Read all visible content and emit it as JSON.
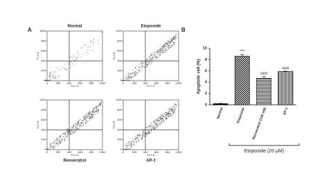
{
  "panel_labels": [
    "A",
    "B"
  ],
  "chart_data": [
    {
      "type": "scatter",
      "title": "Normal",
      "x_label": "FL1-H",
      "y_label": "FL1-H",
      "xlim": [
        0,
        1000
      ],
      "ylim": [
        0,
        1000
      ],
      "xticks": [
        0,
        200,
        400,
        600,
        800,
        1000
      ],
      "yticks": [
        0,
        200,
        400,
        600,
        800,
        1000
      ],
      "quadrant": [
        400,
        400
      ]
    },
    {
      "type": "scatter",
      "title": "Etoposide",
      "x_label": "FL1-H",
      "y_label": "FL2-H",
      "xlim": [
        0,
        1000
      ],
      "ylim": [
        0,
        1000
      ],
      "xticks": [
        0,
        200,
        400,
        600,
        800,
        1000
      ],
      "yticks": [
        0,
        200,
        400,
        600,
        800,
        1000
      ],
      "quadrant": [
        400,
        400
      ]
    },
    {
      "type": "scatter",
      "title": "Resveratrol",
      "x_label": "FL1-H",
      "y_label": "FL2-H",
      "xlim": [
        0,
        1000
      ],
      "ylim": [
        0,
        1000
      ],
      "xticks": [
        0,
        200,
        400,
        600,
        800,
        1000
      ],
      "yticks": [
        0,
        200,
        400,
        600,
        800,
        1000
      ],
      "quadrant": [
        400,
        400
      ]
    },
    {
      "type": "scatter",
      "title": "AP-1",
      "x_label": "FL1-H",
      "y_label": "FL2-H",
      "xlim": [
        0,
        1000
      ],
      "ylim": [
        0,
        1000
      ],
      "xticks": [
        0,
        200,
        400,
        600,
        800,
        1000
      ],
      "yticks": [
        0,
        200,
        400,
        600,
        800,
        1000
      ],
      "quadrant": [
        400,
        400
      ]
    },
    {
      "type": "bar",
      "y_label": "Apoptotic cell (%)",
      "categories": [
        "Normal",
        "Etoposide",
        "Resveratrol (100 nM)",
        "AP-1"
      ],
      "values": [
        0.2,
        8.6,
        4.7,
        5.9
      ],
      "errors": [
        0.05,
        0.3,
        0.3,
        0.05
      ],
      "patterns": [
        "solid",
        "checker",
        "hlines",
        "vlines"
      ],
      "annotations": [
        null,
        "***",
        "###",
        "###"
      ],
      "ylim": [
        0,
        10
      ],
      "yticks": [
        0,
        2,
        4,
        6,
        8,
        10
      ],
      "bracket_label": "Etoposide (20 μM)"
    }
  ]
}
